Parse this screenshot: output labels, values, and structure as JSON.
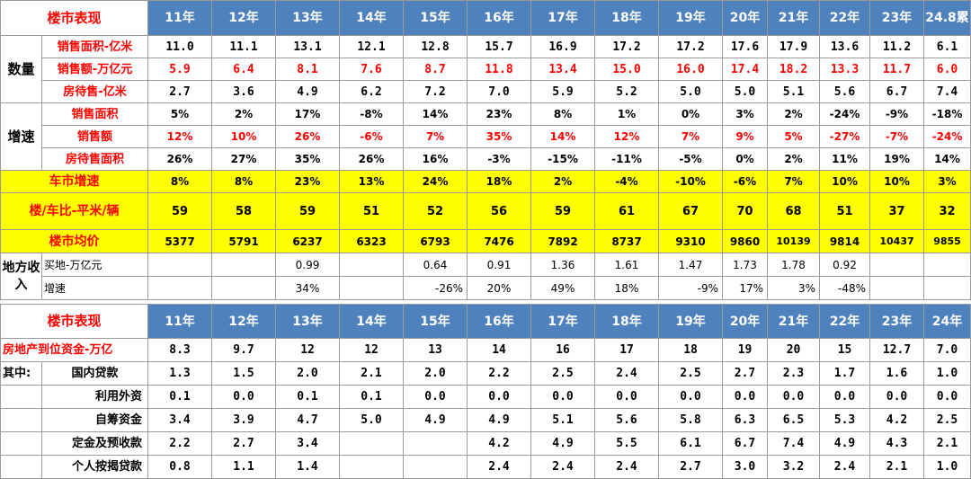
{
  "table1": {
    "header_label": "楼市表现",
    "years": [
      "11年",
      "12年",
      "13年",
      "14年",
      "15年",
      "16年",
      "17年",
      "18年",
      "19年",
      "20年",
      "21年",
      "22年",
      "23年",
      "24.8累"
    ],
    "group_quantity": "数量",
    "group_growth": "增速",
    "rows": {
      "sales_area": {
        "label": "销售面积-亿米",
        "values": [
          "11.0",
          "11.1",
          "13.1",
          "12.1",
          "12.8",
          "15.7",
          "16.9",
          "17.2",
          "17.2",
          "17.6",
          "17.9",
          "13.6",
          "11.2",
          "6.1"
        ]
      },
      "sales_amount": {
        "label": "销售额-万亿元",
        "values": [
          "5.9",
          "6.4",
          "8.1",
          "7.6",
          "8.7",
          "11.8",
          "13.4",
          "15.0",
          "16.0",
          "17.4",
          "18.2",
          "13.3",
          "11.7",
          "6.0"
        ]
      },
      "pending_area": {
        "label": "房待售-亿米",
        "values": [
          "2.7",
          "3.6",
          "4.9",
          "6.2",
          "7.2",
          "7.0",
          "5.9",
          "5.2",
          "5.0",
          "5.0",
          "5.1",
          "5.6",
          "6.7",
          "7.4"
        ]
      },
      "growth_sales_area": {
        "label": "销售面积",
        "values": [
          "5%",
          "2%",
          "17%",
          "-8%",
          "14%",
          "23%",
          "8%",
          "1%",
          "0%",
          "3%",
          "2%",
          "-24%",
          "-9%",
          "-18%"
        ]
      },
      "growth_sales_amount": {
        "label": "销售额",
        "values": [
          "12%",
          "10%",
          "26%",
          "-6%",
          "7%",
          "35%",
          "14%",
          "12%",
          "7%",
          "9%",
          "5%",
          "-27%",
          "-7%",
          "-24%"
        ]
      },
      "growth_pending_area": {
        "label": "房待售面积",
        "values": [
          "26%",
          "27%",
          "35%",
          "26%",
          "16%",
          "-3%",
          "-15%",
          "-11%",
          "-5%",
          "0%",
          "2%",
          "11%",
          "19%",
          "14%"
        ]
      },
      "car_growth": {
        "label": "车市增速",
        "values": [
          "8%",
          "8%",
          "23%",
          "13%",
          "24%",
          "18%",
          "2%",
          "-4%",
          "-10%",
          "-6%",
          "7%",
          "10%",
          "10%",
          "3%"
        ]
      },
      "house_car_ratio": {
        "label": "楼/车比-平米/辆",
        "values": [
          "59",
          "58",
          "59",
          "51",
          "52",
          "56",
          "59",
          "61",
          "67",
          "70",
          "68",
          "51",
          "37",
          "32"
        ]
      },
      "avg_price": {
        "label": "楼市均价",
        "values": [
          "5377",
          "5791",
          "6237",
          "6323",
          "6793",
          "7476",
          "7892",
          "8737",
          "9310",
          "9860",
          "10139",
          "9814",
          "10437",
          "9855"
        ]
      }
    },
    "land": {
      "group": "地方收入",
      "buy_land": {
        "label": "买地-万亿元",
        "values": [
          "",
          "",
          "0.99",
          "",
          "0.64",
          "0.91",
          "1.36",
          "1.61",
          "1.47",
          "1.73",
          "1.78",
          "0.92",
          "",
          ""
        ]
      },
      "growth": {
        "label": "增速",
        "values": [
          "",
          "",
          "34%",
          "",
          "-26%",
          "20%",
          "49%",
          "18%",
          "-9%",
          "17%",
          "3%",
          "-48%",
          "",
          ""
        ]
      }
    }
  },
  "table2": {
    "header_label": "楼市表现",
    "years": [
      "11年",
      "12年",
      "13年",
      "14年",
      "15年",
      "16年",
      "17年",
      "18年",
      "19年",
      "20年",
      "21年",
      "22年",
      "23年",
      "24年"
    ],
    "funding": {
      "label": "房地产到位资金-万亿",
      "values": [
        "8.3",
        "9.7",
        "12",
        "12",
        "13",
        "14",
        "16",
        "17",
        "18",
        "19",
        "20",
        "15",
        "12.7",
        "7.0"
      ]
    },
    "group_among": "其中:",
    "rows": {
      "domestic_loans": {
        "label": "国内贷款",
        "values": [
          "1.3",
          "1.5",
          "2.0",
          "2.1",
          "2.0",
          "2.2",
          "2.5",
          "2.4",
          "2.5",
          "2.7",
          "2.3",
          "1.7",
          "1.6",
          "1.0"
        ]
      },
      "foreign_capital": {
        "label": "利用外资",
        "values": [
          "0.1",
          "0.0",
          "0.1",
          "0.1",
          "0.0",
          "0.0",
          "0.0",
          "0.0",
          "0.0",
          "0.0",
          "0.0",
          "0.0",
          "0.0",
          "0.0"
        ]
      },
      "self_raised": {
        "label": "自筹资金",
        "values": [
          "3.4",
          "3.9",
          "4.7",
          "5.0",
          "4.9",
          "4.9",
          "5.1",
          "5.6",
          "5.8",
          "6.3",
          "6.5",
          "5.3",
          "4.2",
          "2.5"
        ]
      },
      "deposits_prepay": {
        "label": "定金及预收款",
        "values": [
          "2.2",
          "2.7",
          "3.4",
          "",
          "",
          "4.2",
          "4.9",
          "5.5",
          "6.1",
          "6.7",
          "7.4",
          "4.9",
          "4.3",
          "2.1"
        ]
      },
      "mortgage": {
        "label": "个人按揭贷款",
        "values": [
          "0.8",
          "1.1",
          "1.4",
          "",
          "",
          "2.4",
          "2.4",
          "2.4",
          "2.7",
          "3.0",
          "3.2",
          "2.4",
          "2.1",
          "1.0"
        ]
      }
    }
  }
}
